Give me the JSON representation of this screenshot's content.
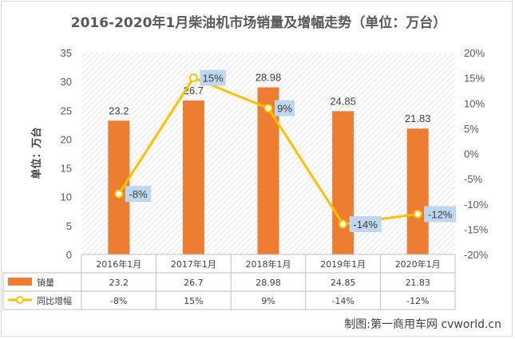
{
  "chart_data": {
    "type": "bar",
    "title": "2016-2020年1月柴油机市场销量及增幅走势（单位：万台）",
    "ylabel": "单位：万台",
    "xlabel": "",
    "categories": [
      "2016年1月",
      "2017年1月",
      "2018年1月",
      "2019年1月",
      "2020年1月"
    ],
    "series": [
      {
        "name": "销量",
        "type": "bar",
        "axis": "left",
        "color": "#ED7D31",
        "values": [
          23.2,
          26.7,
          28.98,
          24.85,
          21.83
        ],
        "labels": [
          "23.2",
          "26.7",
          "28.98",
          "24.85",
          "21.83"
        ]
      },
      {
        "name": "同比增幅",
        "type": "line",
        "axis": "right",
        "color": "#FFC000",
        "values": [
          -8,
          15,
          9,
          -14,
          -12
        ],
        "labels": [
          "-8%",
          "15%",
          "9%",
          "-14%",
          "-12%"
        ]
      }
    ],
    "ylim": [
      0,
      35
    ],
    "y_ticks": [
      "0",
      "5",
      "10",
      "15",
      "20",
      "25",
      "30",
      "35"
    ],
    "y2lim": [
      -20,
      20
    ],
    "y2_ticks": [
      "-20%",
      "-15%",
      "-10%",
      "-5%",
      "0%",
      "5%",
      "10%",
      "15%",
      "20%"
    ],
    "grid": true,
    "legend": "data-table"
  },
  "credit": "制图:第一商用车网 cvworld.cn"
}
